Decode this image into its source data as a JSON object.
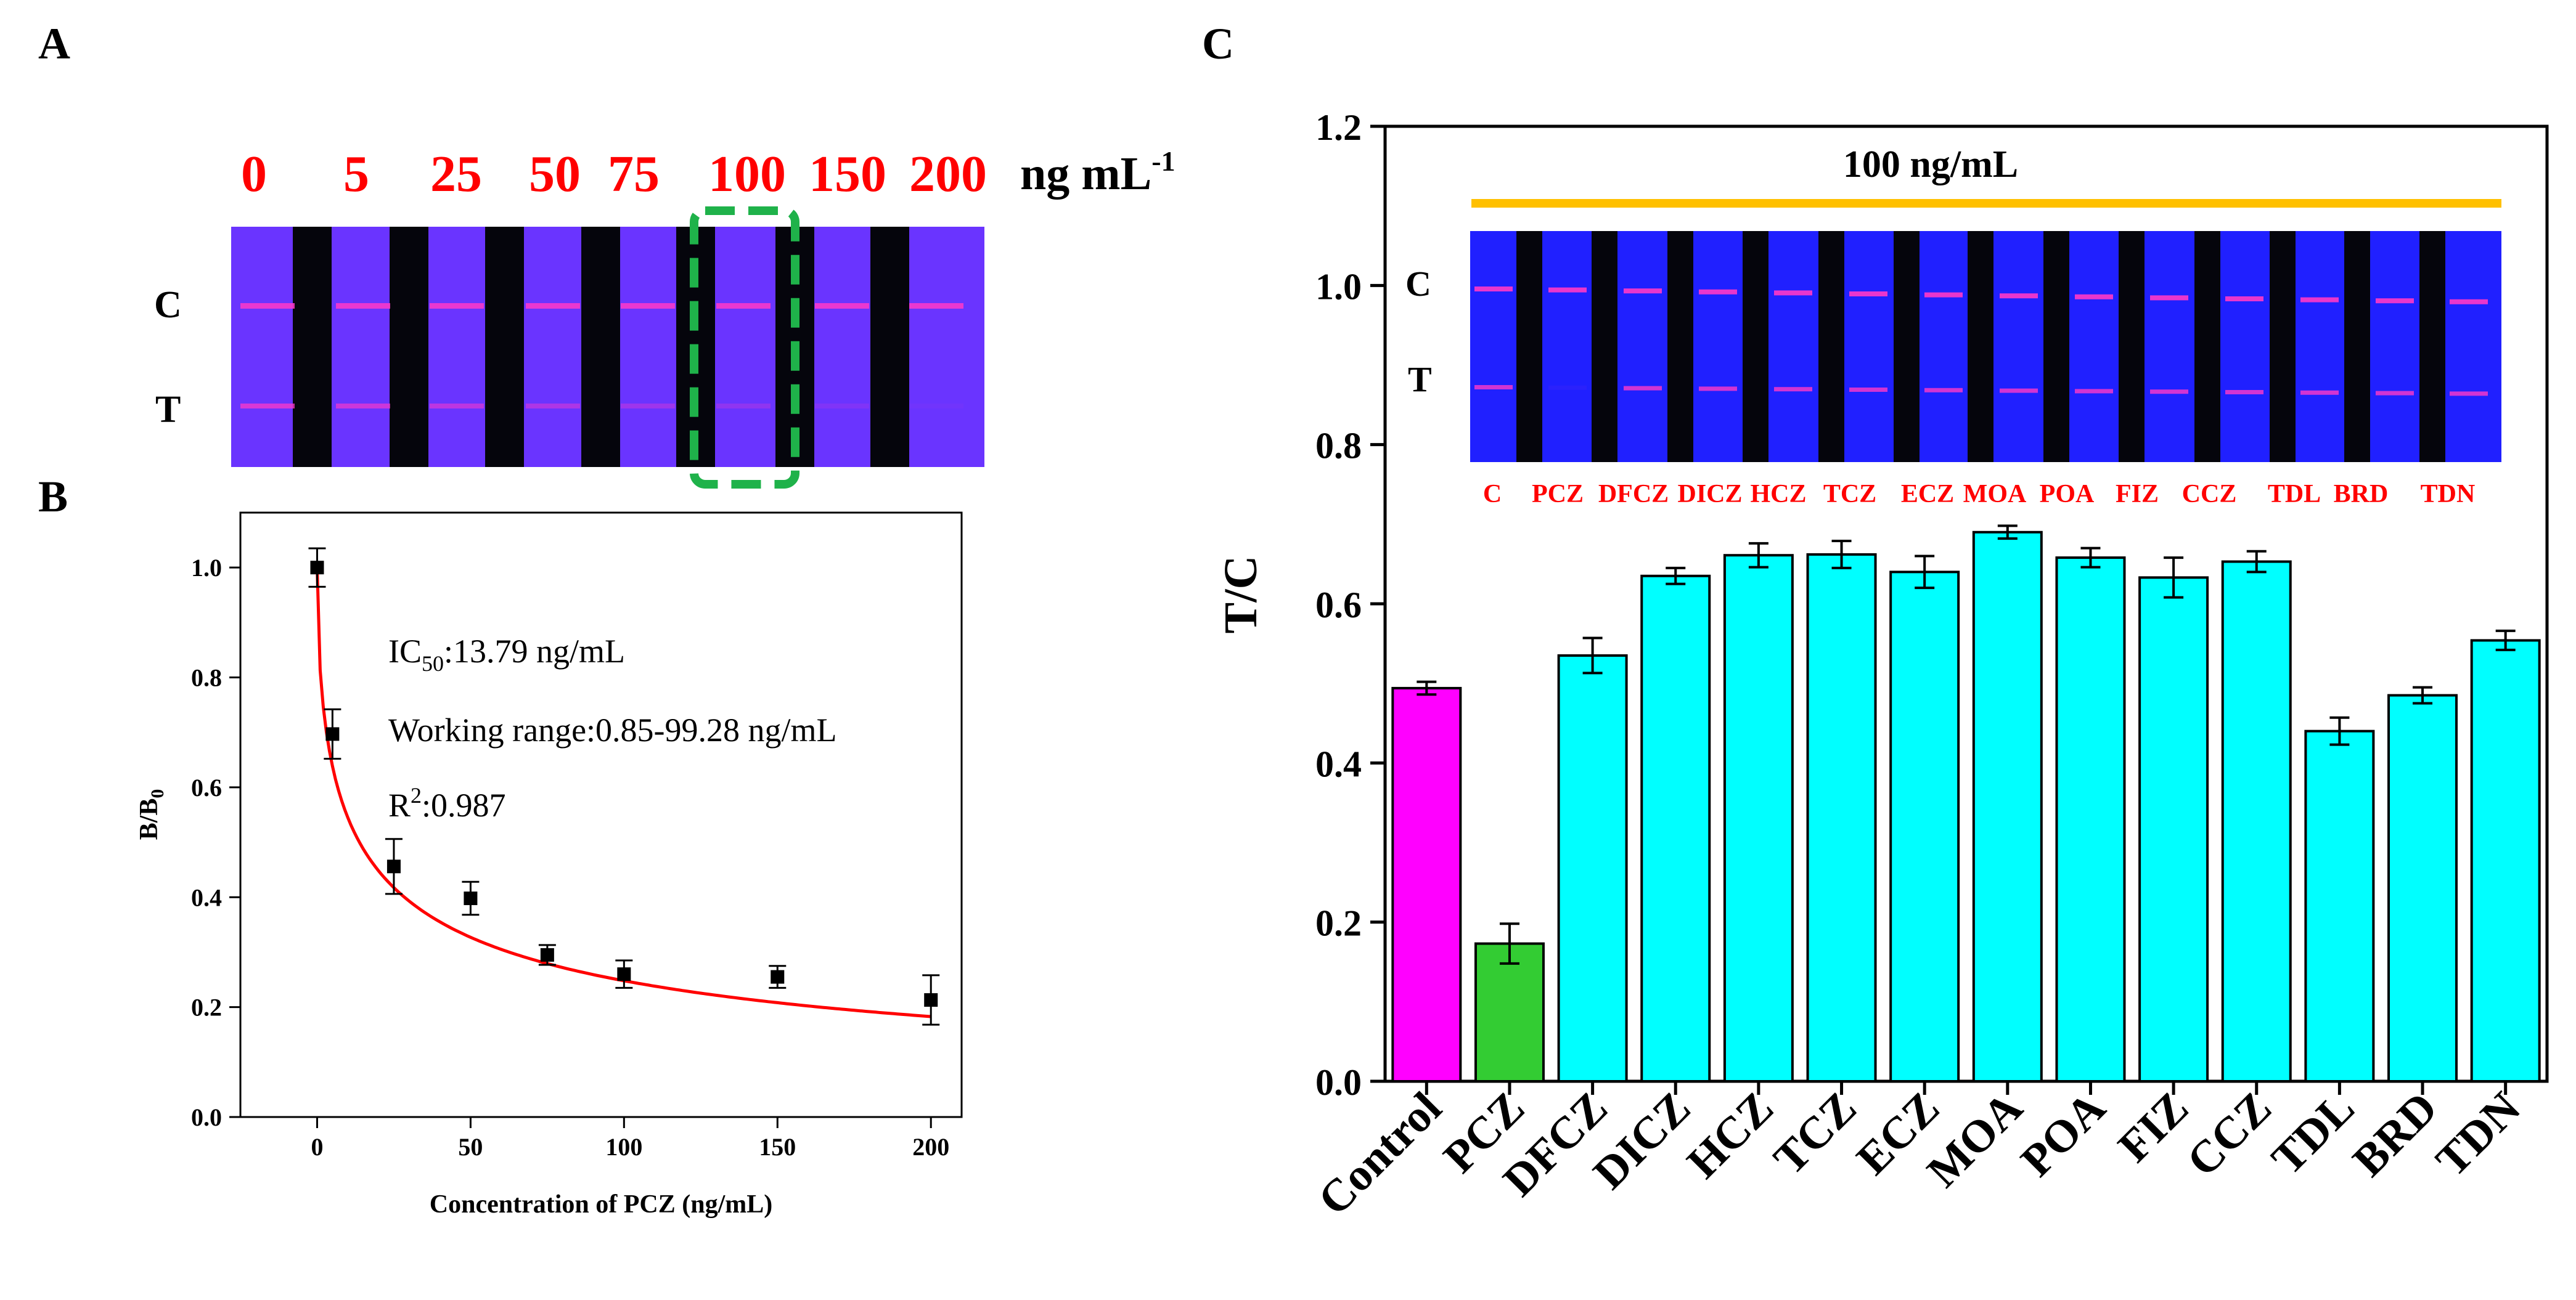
{
  "panels": {
    "a_label": "A",
    "b_label": "B",
    "c_label": "C"
  },
  "panel_a": {
    "concentrations": [
      "0",
      "5",
      "25",
      "50",
      "75",
      "100",
      "150",
      "200"
    ],
    "unit_text": "ng mL",
    "unit_sup": "-1",
    "line_c": "C",
    "line_t": "T",
    "highlighted": "100",
    "colors": {
      "strip": "#6a34ff",
      "gap": "#05050c",
      "line": "#ff39c8",
      "label": "#ff0000",
      "highlight": "#1fb24a"
    }
  },
  "chart_data": [
    {
      "type": "scatter",
      "title": "",
      "xlabel": "Concentration of PCZ (ng/mL)",
      "ylabel_main": "B/B",
      "ylabel_sub": "0",
      "xlim": [
        -25,
        210
      ],
      "ylim": [
        0,
        1.1
      ],
      "xticks": [
        0,
        50,
        100,
        150,
        200
      ],
      "yticks": [
        0.0,
        0.2,
        0.4,
        0.6,
        0.8,
        1.0
      ],
      "x": [
        0,
        5,
        25,
        50,
        75,
        100,
        150,
        200
      ],
      "y": [
        1.0,
        0.697,
        0.456,
        0.398,
        0.295,
        0.26,
        0.255,
        0.213
      ],
      "err": [
        0.035,
        0.045,
        0.05,
        0.03,
        0.018,
        0.025,
        0.02,
        0.045
      ],
      "fit": {
        "type": "four-parameter logistic",
        "top": 1.0,
        "bottom": 0.0,
        "ic50": 13.79,
        "slope": 0.56,
        "color": "#ff0000"
      },
      "annotations": {
        "ic50_main": "IC",
        "ic50_sub": "50",
        "ic50_value": ":13.79 ng/mL",
        "working_range": "Working range:0.85-99.28 ng/mL",
        "r2_main": "R",
        "r2_sup": "2",
        "r2_value": ":0.987"
      }
    },
    {
      "type": "bar",
      "title": "",
      "xlabel": "",
      "ylabel": "T/C",
      "ylim": [
        0,
        1.2
      ],
      "yticks": [
        0.0,
        0.2,
        0.4,
        0.6,
        0.8,
        1.0,
        1.2
      ],
      "categories": [
        "Control",
        "PCZ",
        "DFCZ",
        "DICZ",
        "HCZ",
        "TCZ",
        "ECZ",
        "MOA",
        "POA",
        "FIZ",
        "CCZ",
        "TDL",
        "BRD",
        "TDN"
      ],
      "values": [
        0.494,
        0.173,
        0.535,
        0.635,
        0.661,
        0.662,
        0.64,
        0.69,
        0.658,
        0.633,
        0.653,
        0.44,
        0.485,
        0.554
      ],
      "errors": [
        0.008,
        0.025,
        0.022,
        0.01,
        0.015,
        0.017,
        0.02,
        0.008,
        0.012,
        0.025,
        0.013,
        0.017,
        0.01,
        0.012
      ],
      "bar_colors": [
        "#ff00ff",
        "#33cc33",
        "#00ffff",
        "#00ffff",
        "#00ffff",
        "#00ffff",
        "#00ffff",
        "#00ffff",
        "#00ffff",
        "#00ffff",
        "#00ffff",
        "#00ffff",
        "#00ffff",
        "#00ffff"
      ],
      "inset": {
        "title": "100 ng/mL",
        "line_color": "#ffc000",
        "line_c": "C",
        "line_t": "T",
        "strip_labels": [
          "C",
          "PCZ",
          "DFCZ",
          "DICZ",
          "HCZ",
          "TCZ",
          "ECZ",
          "MOA",
          "POA",
          "FIZ",
          "CCZ",
          "TDL",
          "BRD",
          "TDN"
        ],
        "label_color": "#ff0000"
      }
    }
  ]
}
